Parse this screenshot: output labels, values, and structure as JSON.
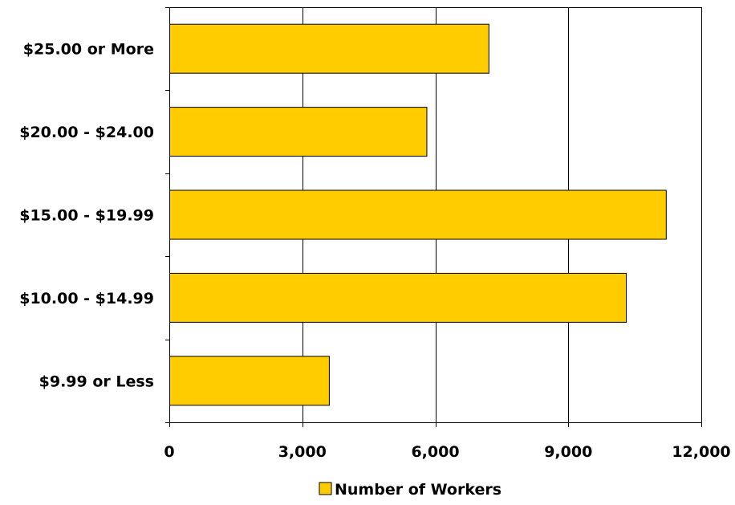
{
  "chart_data": {
    "type": "bar",
    "orientation": "horizontal",
    "categories": [
      "$25.00 or More",
      "$20.00 - $24.00",
      "$15.00 - $19.99",
      "$10.00 - $14.99",
      "$9.99 or Less"
    ],
    "series": [
      {
        "name": "Number of Workers",
        "color": "#FFCC00",
        "values": [
          7200,
          5800,
          11200,
          10300,
          3600
        ]
      }
    ],
    "xlim": [
      0,
      12000
    ],
    "xticks": [
      0,
      3000,
      6000,
      9000,
      12000
    ],
    "xtick_labels": [
      "0",
      "3,000",
      "6,000",
      "9,000",
      "12,000"
    ],
    "grid": "vertical",
    "legend": "bottom",
    "title": "",
    "xlabel": "",
    "ylabel": ""
  }
}
